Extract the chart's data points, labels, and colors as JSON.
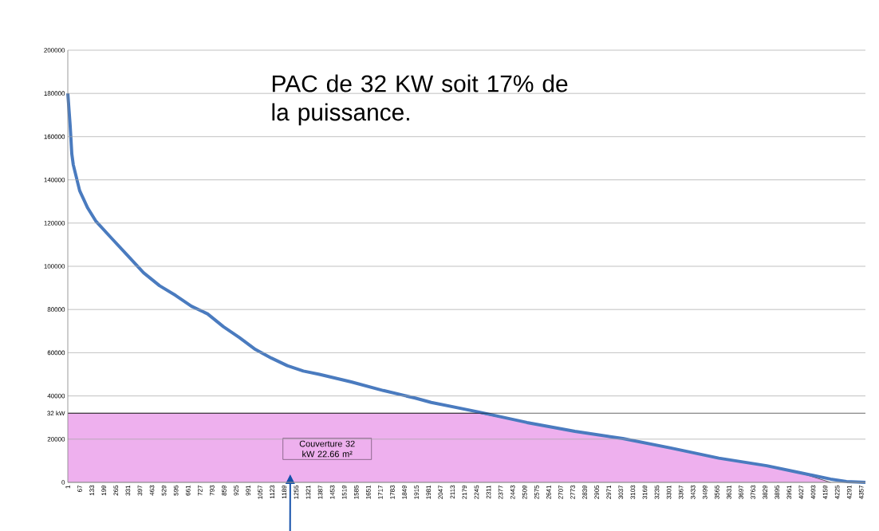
{
  "chart_data": {
    "type": "line",
    "annotations": [
      "PAC de 32 KW soit 17% de la puissance.",
      "Couverture 32 kW 22.66 m²"
    ],
    "xlim": [
      1,
      4380
    ],
    "ylim": [
      0,
      200000
    ],
    "xticks": [
      1,
      67,
      133,
      199,
      265,
      331,
      397,
      463,
      529,
      595,
      661,
      727,
      793,
      859,
      925,
      991,
      1057,
      1123,
      1189,
      1255,
      1321,
      1387,
      1453,
      1519,
      1585,
      1651,
      1717,
      1783,
      1849,
      1915,
      1981,
      2047,
      2113,
      2179,
      2245,
      2311,
      2377,
      2443,
      2509,
      2575,
      2641,
      2707,
      2773,
      2839,
      2905,
      2971,
      3037,
      3103,
      3169,
      3235,
      3301,
      3367,
      3433,
      3499,
      3565,
      3631,
      3697,
      3763,
      3829,
      3895,
      3961,
      4027,
      4093,
      4159,
      4225,
      4291,
      4357
    ],
    "yticks": [
      0,
      20000,
      40000,
      60000,
      80000,
      100000,
      120000,
      140000,
      160000,
      180000,
      200000
    ],
    "grid": "y",
    "ref_lines": [
      {
        "axis": "y",
        "value": 32000,
        "label": "32 kW",
        "color": "#000000"
      }
    ],
    "series": [
      {
        "type": "area",
        "color": "#eeb0ee",
        "x": [
          1,
          2259,
          2522,
          2785,
          3048,
          3311,
          3575,
          3838,
          4013,
          4189
        ],
        "values": [
          32000,
          32000,
          27700,
          23600,
          20300,
          15900,
          11200,
          7700,
          4600,
          0
        ]
      },
      {
        "color": "#4a7bbf",
        "x": [
          1,
          14,
          23,
          31,
          66,
          110,
          154,
          241,
          329,
          417,
          505,
          593,
          680,
          768,
          856,
          943,
          1031,
          1119,
          1206,
          1294,
          1382,
          1557,
          1733,
          1908,
          1996,
          2259,
          2522,
          2785,
          3048,
          3311,
          3575,
          3838,
          4013,
          4189,
          4276,
          4380
        ],
        "values": [
          180000,
          165000,
          152000,
          147000,
          135000,
          127000,
          121000,
          113000,
          105000,
          97000,
          91000,
          86500,
          81500,
          78000,
          72000,
          67000,
          61500,
          57500,
          54000,
          51500,
          50000,
          46500,
          42500,
          39000,
          37000,
          32500,
          27700,
          23600,
          20300,
          15900,
          11200,
          7700,
          4600,
          1500,
          400,
          0
        ]
      }
    ]
  }
}
